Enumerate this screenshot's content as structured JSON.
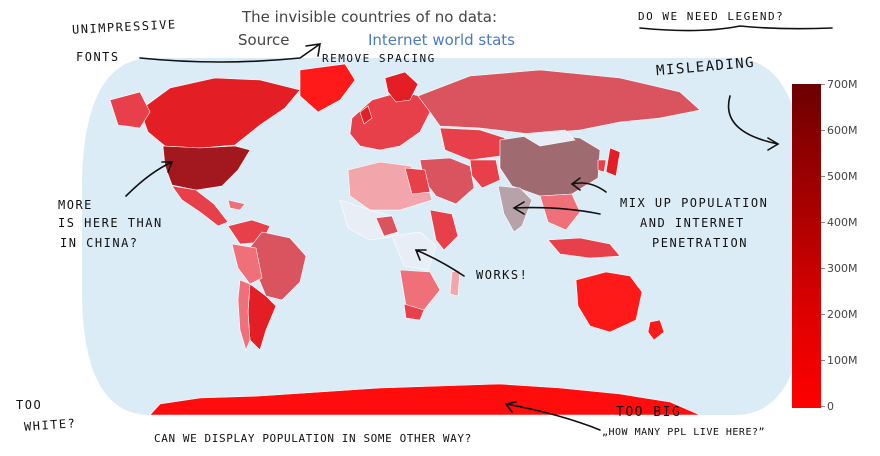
{
  "title": "The invisible countries of no data:",
  "source_label": "Source",
  "source_link": "Internet world stats",
  "colorbar": {
    "ticks": [
      "700M",
      "600M",
      "500M",
      "400M",
      "300M",
      "200M",
      "100M",
      "0"
    ],
    "colors": [
      "#6b0000",
      "#ff0000"
    ]
  },
  "colors": {
    "ocean": "#dcecf7",
    "land_no_data": "#e8eef5",
    "high": "#8b1a1a",
    "mid": "#d9545e",
    "bright": "#ff1a1a"
  },
  "annotations": {
    "unimpressive": "UNIMPRESSIVE",
    "fonts": "FONTS",
    "remove_spacing": "REMOVE SPACING",
    "do_we_need_legend": "DO WE NEED LEGEND?",
    "misleading": "MISLEADING",
    "more_is_here_1": "MORE",
    "more_is_here_2": "IS HERE THAN",
    "more_is_here_3": "IN CHINA?",
    "mix_up_1": "MIX UP POPULATION",
    "mix_up_2": "AND INTERNET",
    "mix_up_3": "PENETRATION",
    "works": "WORKS!",
    "too_white_1": "TOO",
    "too_white_2": "WHITE?",
    "too_big": "TOO BIG",
    "how_many": "„HOW MANY PPL LIVE HERE?”",
    "can_we": "CAN WE DISPLAY POPULATION IN SOME OTHER WAY?"
  }
}
